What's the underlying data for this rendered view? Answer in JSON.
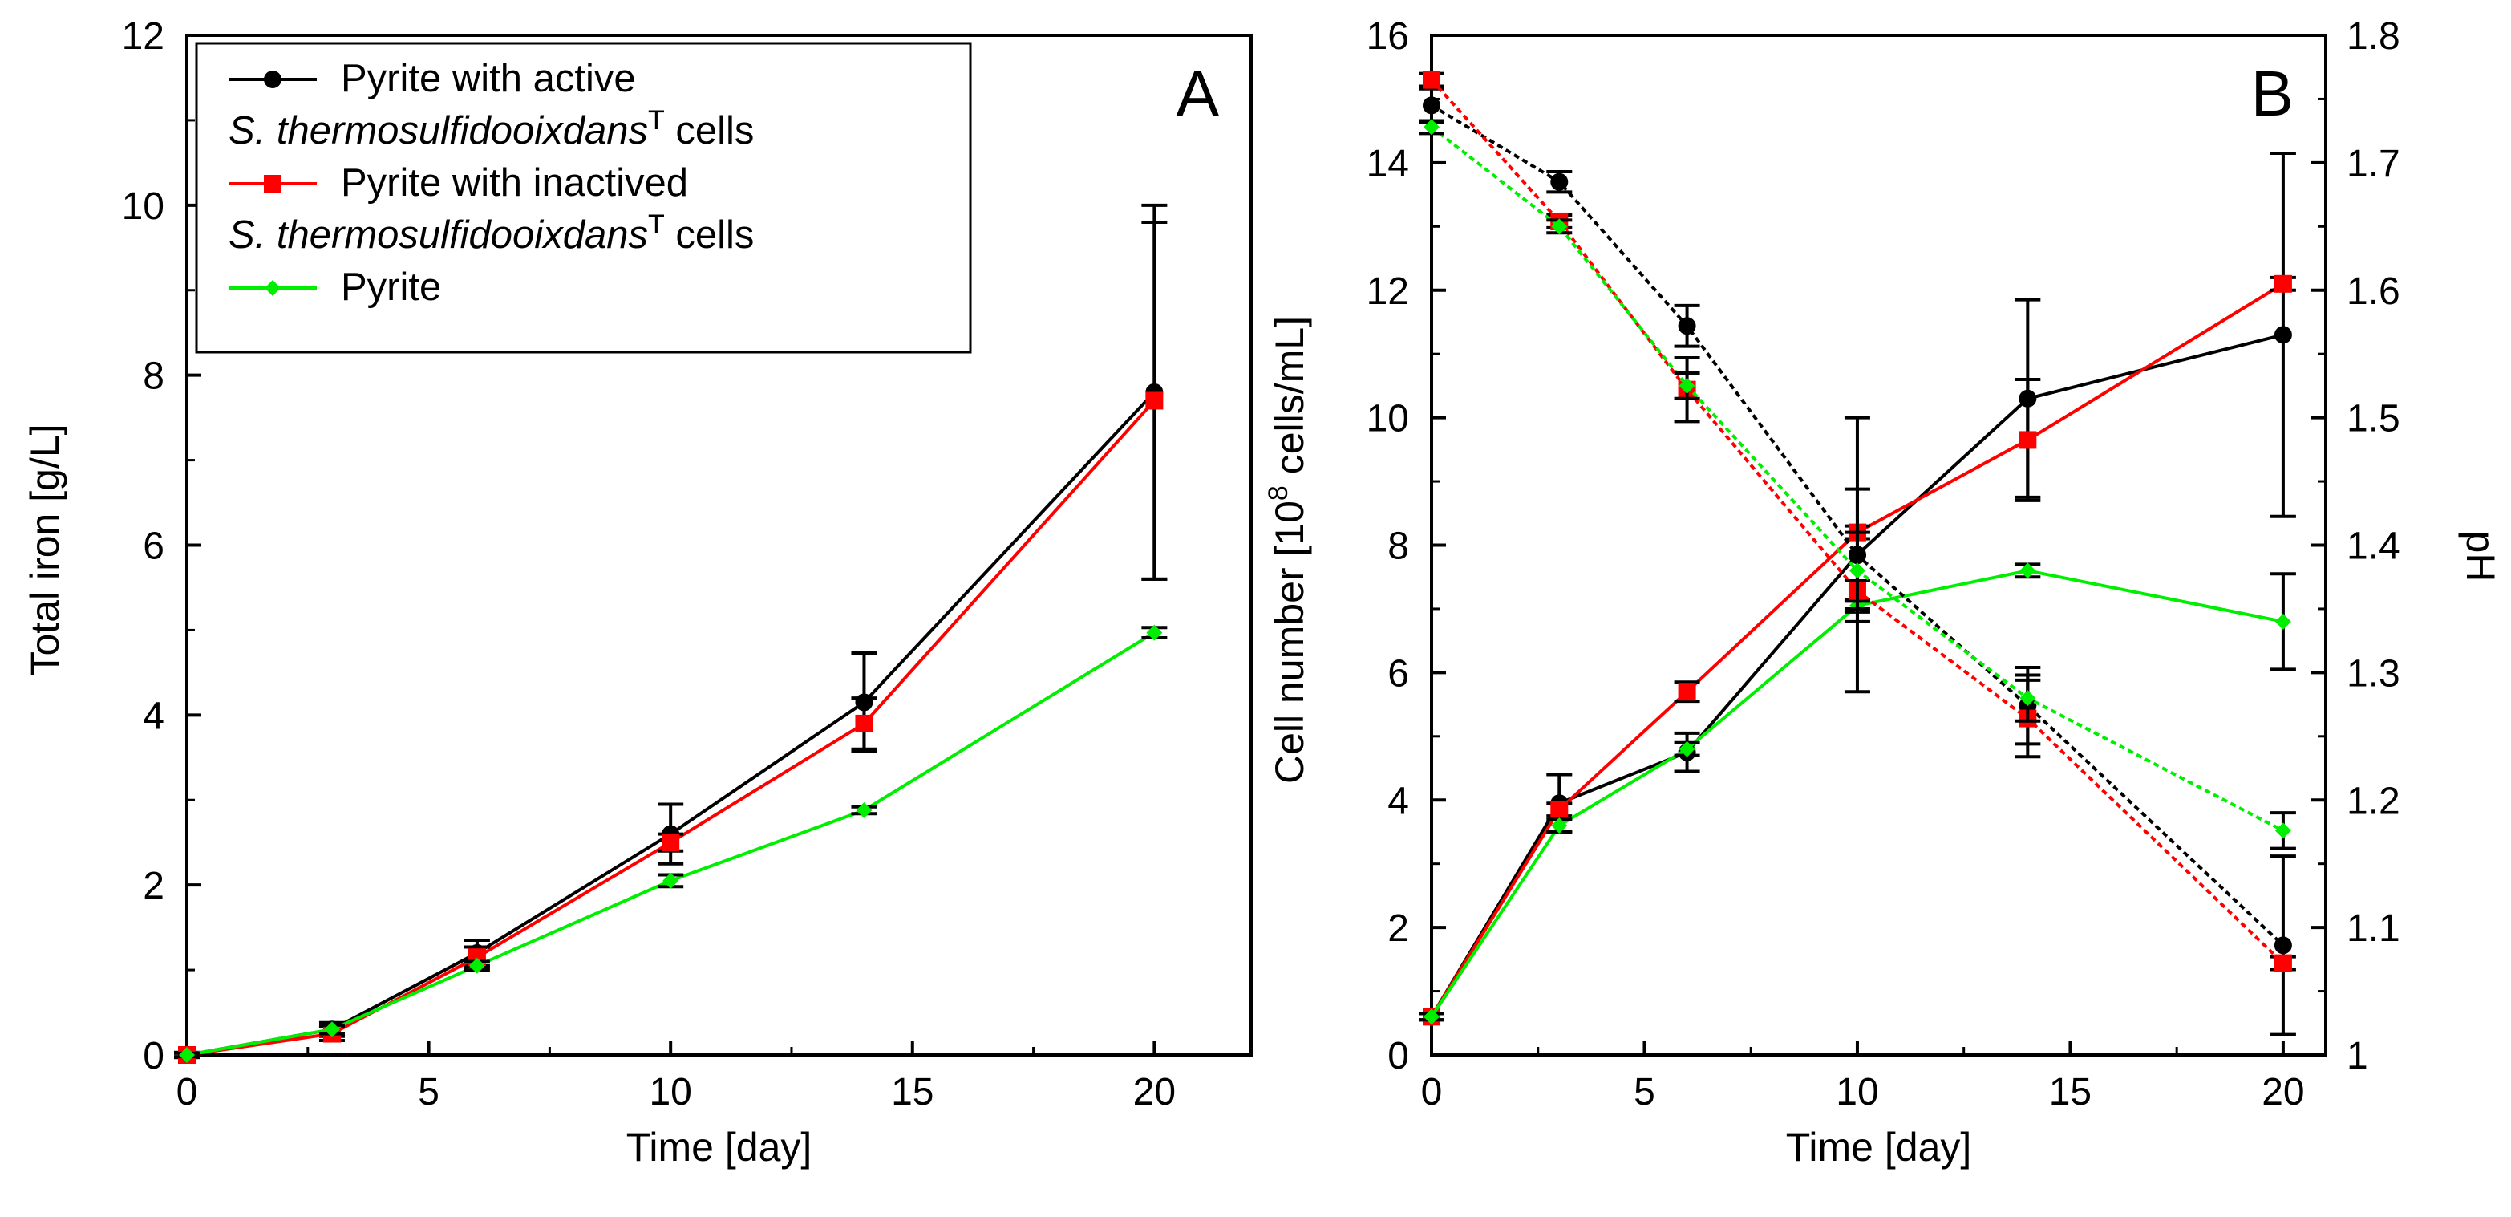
{
  "chart_data": [
    {
      "panel_label": "A",
      "type": "line",
      "xlabel": "Time [day]",
      "ylabel": "Total iron [g/L]",
      "xlim": [
        0,
        22
      ],
      "ylim": [
        0,
        12
      ],
      "xticks": [
        "0",
        "5",
        "10",
        "15",
        "20"
      ],
      "yticks": [
        "0",
        "2",
        "4",
        "6",
        "8",
        "10",
        "12"
      ],
      "x": [
        0,
        3,
        6,
        10,
        14,
        20
      ],
      "series": [
        {
          "name": "active",
          "color": "#000000",
          "marker": "circle",
          "values": [
            0.0,
            0.3,
            1.2,
            2.6,
            4.15,
            7.8
          ],
          "errors": [
            0.03,
            0.08,
            0.15,
            0.35,
            0.58,
            2.2
          ]
        },
        {
          "name": "inactived",
          "color": "#ff0000",
          "marker": "square",
          "values": [
            0.0,
            0.25,
            1.15,
            2.5,
            3.9,
            7.7
          ],
          "errors": [
            0.03,
            0.08,
            0.12,
            0.1,
            0.3,
            2.1
          ]
        },
        {
          "name": "pyrite",
          "color": "#00ee00",
          "marker": "diamond",
          "values": [
            0.0,
            0.3,
            1.05,
            2.05,
            2.88,
            4.97
          ],
          "errors": [
            0.02,
            0.05,
            0.05,
            0.07,
            0.04,
            0.06
          ]
        }
      ],
      "legend": {
        "position": "top-left",
        "entries": [
          {
            "line1": "Pyrite with active",
            "italic": "S. thermosulfidooixdans",
            "sup": "T",
            "suffix": " cells"
          },
          {
            "line1": "Pyrite with inactived",
            "italic": "S. thermosulfidooixdans",
            "sup": "T",
            "suffix": " cells"
          },
          {
            "line1": "Pyrite"
          }
        ]
      }
    },
    {
      "panel_label": "B",
      "type": "line",
      "xlabel": "Time [day]",
      "ylabel_prefix": "Cell number [10",
      "ylabel_sup": "8",
      "ylabel_suffix": " cells/mL]",
      "y2label": "pH",
      "xlim": [
        0,
        21
      ],
      "ylim": [
        0,
        16
      ],
      "y2lim": [
        1,
        1.8
      ],
      "xticks": [
        "0",
        "5",
        "10",
        "15",
        "20"
      ],
      "yticks": [
        "0",
        "2",
        "4",
        "6",
        "8",
        "10",
        "12",
        "14",
        "16"
      ],
      "y2ticks": [
        "1",
        "1.1",
        "1.2",
        "1.3",
        "1.4",
        "1.5",
        "1.6",
        "1.7",
        "1.8"
      ],
      "x": [
        0,
        3,
        6,
        10,
        14,
        20
      ],
      "series": [
        {
          "name": "active cells",
          "axis": "left",
          "style": "solid",
          "color": "#000000",
          "marker": "circle",
          "values": [
            0.6,
            3.95,
            4.75,
            7.85,
            10.3,
            11.3
          ],
          "errors": [
            0.05,
            0.45,
            0.3,
            2.15,
            1.55,
            2.85
          ]
        },
        {
          "name": "inactived cells",
          "axis": "left",
          "style": "solid",
          "color": "#ff0000",
          "marker": "square",
          "values": [
            0.6,
            3.85,
            5.7,
            8.2,
            9.65,
            12.1
          ],
          "errors": [
            0.05,
            0.1,
            0.15,
            0.1,
            0.95,
            0.1
          ]
        },
        {
          "name": "pyrite cells",
          "axis": "left",
          "style": "solid",
          "color": "#00ee00",
          "marker": "diamond",
          "values": [
            0.6,
            3.6,
            4.8,
            7.05,
            7.6,
            6.8
          ],
          "errors": [
            0.05,
            0.1,
            0.1,
            0.1,
            0.1,
            0.75
          ]
        },
        {
          "name": "active pH",
          "axis": "right",
          "style": "dotted",
          "color": "#000000",
          "marker": "circle",
          "values": [
            1.745,
            1.685,
            1.572,
            1.392,
            1.274,
            1.086
          ],
          "errors": [
            0.013,
            0.008,
            0.016,
            0.052,
            0.03,
            0.07
          ]
        },
        {
          "name": "inactived pH",
          "axis": "right",
          "style": "dotted",
          "color": "#ff0000",
          "marker": "square",
          "values": [
            1.765,
            1.654,
            1.522,
            1.364,
            1.264,
            1.072
          ],
          "errors": [
            0.005,
            0.005,
            0.025,
            0.008,
            0.03,
            0.005
          ]
        },
        {
          "name": "pyrite pH",
          "axis": "right",
          "style": "dotted",
          "color": "#00ee00",
          "marker": "diamond",
          "values": [
            1.728,
            1.65,
            1.525,
            1.38,
            1.28,
            1.176
          ],
          "errors": [
            0.005,
            0.005,
            0.01,
            0.03,
            0.018,
            0.014
          ]
        }
      ]
    }
  ]
}
